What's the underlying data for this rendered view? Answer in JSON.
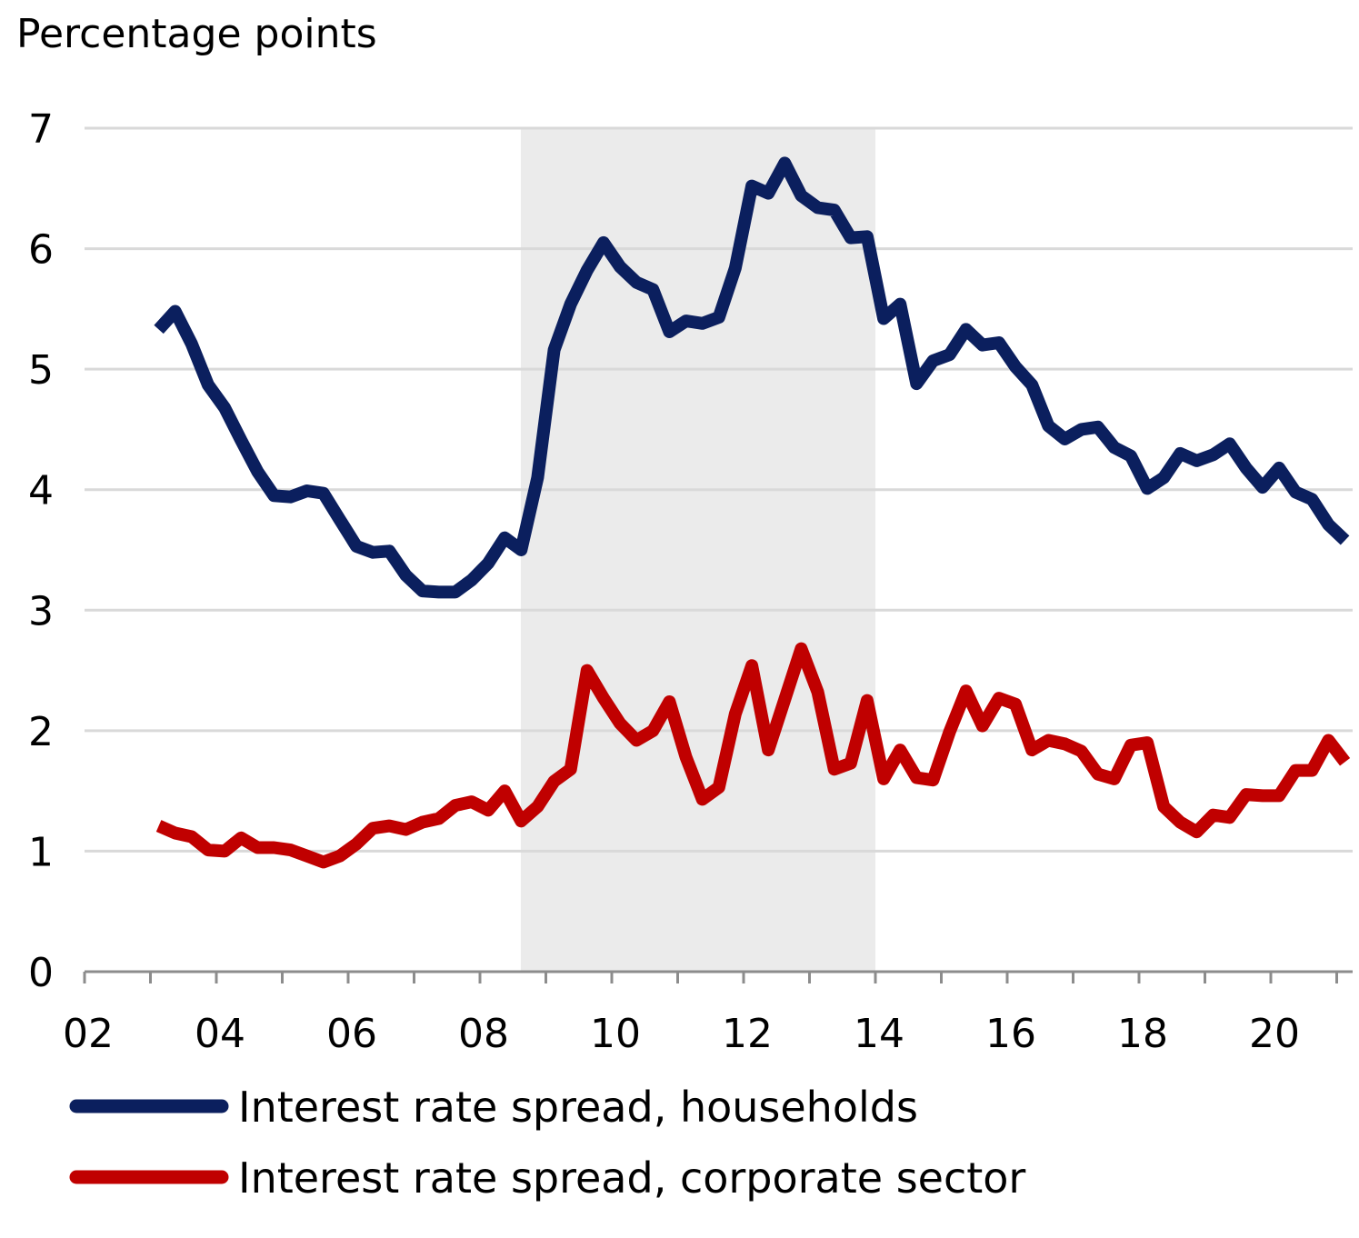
{
  "chart_data": {
    "type": "line",
    "title": "",
    "ylabel": "Percentage points",
    "xlabel": "",
    "ylim": [
      0,
      7
    ],
    "xlim": [
      2002,
      2021.3
    ],
    "yticks": [
      "0",
      "1",
      "2",
      "3",
      "4",
      "5",
      "6",
      "7"
    ],
    "xticks": [
      "02",
      "04",
      "06",
      "08",
      "10",
      "12",
      "14",
      "16",
      "18",
      "20"
    ],
    "grid": "horizontal",
    "legend_placement": "bottom",
    "shaded_period": {
      "from": 2008.62,
      "to": 2014.0,
      "color": "#ebebeb"
    },
    "x": [
      "2003Q1",
      "2003Q2",
      "2003Q3",
      "2003Q4",
      "2004Q1",
      "2004Q2",
      "2004Q3",
      "2004Q4",
      "2005Q1",
      "2005Q2",
      "2005Q3",
      "2005Q4",
      "2006Q1",
      "2006Q2",
      "2006Q3",
      "2006Q4",
      "2007Q1",
      "2007Q2",
      "2007Q3",
      "2007Q4",
      "2008Q1",
      "2008Q2",
      "2008Q3",
      "2008Q4",
      "2009Q1",
      "2009Q2",
      "2009Q3",
      "2009Q4",
      "2010Q1",
      "2010Q2",
      "2010Q3",
      "2010Q4",
      "2011Q1",
      "2011Q2",
      "2011Q3",
      "2011Q4",
      "2012Q1",
      "2012Q2",
      "2012Q3",
      "2012Q4",
      "2013Q1",
      "2013Q2",
      "2013Q3",
      "2013Q4",
      "2014Q1",
      "2014Q2",
      "2014Q3",
      "2014Q4",
      "2015Q1",
      "2015Q2",
      "2015Q3",
      "2015Q4",
      "2016Q1",
      "2016Q2",
      "2016Q3",
      "2016Q4",
      "2017Q1",
      "2017Q2",
      "2017Q3",
      "2017Q4",
      "2018Q1",
      "2018Q2",
      "2018Q3",
      "2018Q4",
      "2019Q1",
      "2019Q2",
      "2019Q3",
      "2019Q4",
      "2020Q1",
      "2020Q2",
      "2020Q3",
      "2020Q4",
      "2021Q1"
    ],
    "series": [
      {
        "name": "Interest rate spread, households",
        "color": "#0b1f5e",
        "values": [
          5.33,
          5.48,
          5.21,
          4.87,
          4.68,
          4.41,
          4.15,
          3.95,
          3.94,
          3.99,
          3.97,
          3.75,
          3.53,
          3.48,
          3.49,
          3.29,
          3.16,
          3.15,
          3.15,
          3.25,
          3.39,
          3.6,
          3.5,
          4.1,
          5.16,
          5.54,
          5.82,
          6.05,
          5.85,
          5.72,
          5.66,
          5.31,
          5.4,
          5.38,
          5.43,
          5.84,
          6.52,
          6.46,
          6.71,
          6.44,
          6.34,
          6.32,
          6.09,
          6.1,
          5.42,
          5.54,
          4.88,
          5.07,
          5.12,
          5.33,
          5.2,
          5.22,
          5.02,
          4.87,
          4.53,
          4.42,
          4.5,
          4.52,
          4.35,
          4.28,
          4.01,
          4.1,
          4.3,
          4.24,
          4.29,
          4.38,
          4.18,
          4.02,
          4.18,
          3.98,
          3.92,
          3.71,
          3.58
        ]
      },
      {
        "name": "Interest rate spread, corporate sector",
        "color": "#c00000",
        "values": [
          1.21,
          1.15,
          1.12,
          1.01,
          1.0,
          1.11,
          1.03,
          1.03,
          1.01,
          0.96,
          0.91,
          0.96,
          1.06,
          1.19,
          1.21,
          1.18,
          1.24,
          1.27,
          1.38,
          1.41,
          1.34,
          1.5,
          1.25,
          1.37,
          1.58,
          1.68,
          2.5,
          2.27,
          2.06,
          1.92,
          2.0,
          2.24,
          1.78,
          1.43,
          1.53,
          2.14,
          2.54,
          1.84,
          2.26,
          2.68,
          2.32,
          1.68,
          1.73,
          2.25,
          1.6,
          1.84,
          1.61,
          1.59,
          1.99,
          2.33,
          2.04,
          2.27,
          2.22,
          1.84,
          1.92,
          1.89,
          1.83,
          1.64,
          1.6,
          1.88,
          1.9,
          1.37,
          1.24,
          1.16,
          1.3,
          1.28,
          1.47,
          1.46,
          1.46,
          1.67,
          1.67,
          1.92,
          1.74
        ]
      }
    ]
  }
}
